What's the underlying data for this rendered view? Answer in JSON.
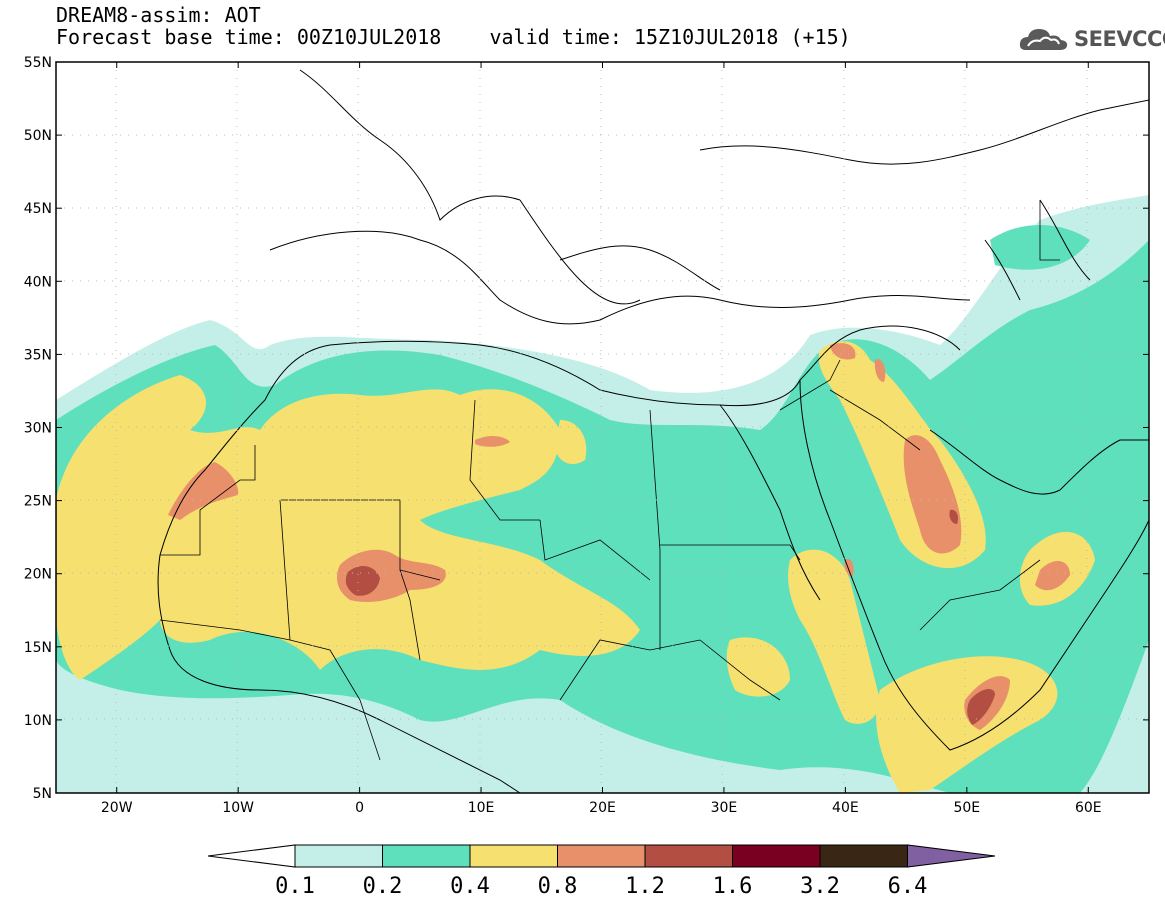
{
  "title": {
    "line1": "DREAM8-assim: AOT",
    "line2": "Forecast base time: 00Z10JUL2018    valid time: 15Z10JUL2018 (+15)"
  },
  "logo": {
    "text": "SEEVCCC",
    "icon": "cloud-logo-icon"
  },
  "map": {
    "lon_range": [
      -25,
      65
    ],
    "lat_range": [
      5,
      55
    ],
    "lon_ticks": [
      "20W",
      "10W",
      "0",
      "10E",
      "20E",
      "30E",
      "40E",
      "50E",
      "60E"
    ],
    "lat_ticks": [
      "55N",
      "50N",
      "45N",
      "40N",
      "35N",
      "30N",
      "25N",
      "20N",
      "15N",
      "10N",
      "5N"
    ]
  },
  "colorbar": {
    "labels": [
      "0.1",
      "0.2",
      "0.4",
      "0.8",
      "1.2",
      "1.6",
      "3.2",
      "6.4"
    ],
    "colors": [
      "#ffffff",
      "#c4efe8",
      "#5ee0bc",
      "#f5e070",
      "#e8906a",
      "#b24e42",
      "#7a0022",
      "#3a2614",
      "#8060a0"
    ]
  }
}
